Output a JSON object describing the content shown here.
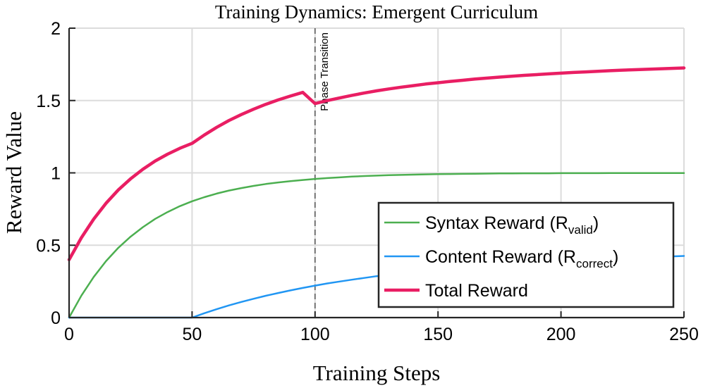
{
  "chart_data": {
    "type": "line",
    "title": "Training Dynamics: Emergent Curriculum",
    "xlabel": "Training Steps",
    "ylabel": "Reward Value",
    "xlim": [
      0,
      250
    ],
    "ylim": [
      0,
      2
    ],
    "xticks": [
      0,
      50,
      100,
      150,
      200,
      250
    ],
    "yticks": [
      0,
      0.5,
      1,
      1.5,
      2
    ],
    "xtick_labels": [
      "0",
      "50",
      "100",
      "150",
      "200",
      "250"
    ],
    "ytick_labels": [
      "0",
      "0.5",
      "1",
      "1.5",
      "2"
    ],
    "grid": true,
    "legend_position": "bottom-right",
    "x": [
      0,
      5,
      10,
      15,
      20,
      25,
      30,
      35,
      40,
      45,
      50,
      55,
      60,
      65,
      70,
      75,
      80,
      85,
      90,
      95,
      100,
      105,
      110,
      115,
      120,
      125,
      130,
      135,
      140,
      145,
      150,
      155,
      160,
      165,
      170,
      175,
      180,
      185,
      190,
      195,
      200,
      205,
      210,
      215,
      220,
      225,
      230,
      235,
      240,
      245,
      250
    ],
    "series": [
      {
        "name": "Syntax Reward (R",
        "name_subscript": "valid",
        "name_suffix": ")",
        "color": "#4caf50",
        "width": 2.5,
        "values": [
          0,
          0.152,
          0.281,
          0.39,
          0.482,
          0.559,
          0.625,
          0.682,
          0.729,
          0.77,
          0.804,
          0.832,
          0.857,
          0.878,
          0.895,
          0.91,
          0.923,
          0.934,
          0.943,
          0.951,
          0.958,
          0.964,
          0.969,
          0.974,
          0.978,
          0.981,
          0.984,
          0.986,
          0.988,
          0.99,
          0.991,
          0.992,
          0.993,
          0.994,
          0.995,
          0.996,
          0.996,
          0.997,
          0.997,
          0.997,
          0.998,
          0.998,
          0.998,
          0.998,
          0.999,
          0.999,
          0.999,
          0.999,
          0.999,
          0.999,
          0.999
        ]
      },
      {
        "name": "Content Reward (R",
        "name_subscript": "correct",
        "name_suffix": ")",
        "color": "#2196f3",
        "width": 2.5,
        "values": [
          0,
          0,
          0,
          0,
          0,
          0,
          0,
          0,
          0,
          0,
          0,
          0.03,
          0.058,
          0.084,
          0.108,
          0.13,
          0.151,
          0.17,
          0.188,
          0.205,
          0.221,
          0.236,
          0.249,
          0.262,
          0.274,
          0.286,
          0.296,
          0.306,
          0.315,
          0.324,
          0.332,
          0.34,
          0.347,
          0.354,
          0.36,
          0.366,
          0.372,
          0.377,
          0.382,
          0.387,
          0.391,
          0.396,
          0.4,
          0.404,
          0.407,
          0.411,
          0.414,
          0.417,
          0.42,
          0.423,
          0.426
        ]
      },
      {
        "name": "Total Reward",
        "color": "#e91e63",
        "width": 4.5,
        "values": [
          0.4,
          0.552,
          0.681,
          0.79,
          0.882,
          0.959,
          1.025,
          1.082,
          1.129,
          1.17,
          1.204,
          1.262,
          1.315,
          1.362,
          1.403,
          1.44,
          1.474,
          1.504,
          1.531,
          1.556,
          1.479,
          1.5,
          1.518,
          1.536,
          1.552,
          1.567,
          1.58,
          1.592,
          1.603,
          1.614,
          1.623,
          1.632,
          1.64,
          1.648,
          1.655,
          1.662,
          1.668,
          1.674,
          1.679,
          1.684,
          1.689,
          1.694,
          1.698,
          1.702,
          1.706,
          1.71,
          1.713,
          1.716,
          1.719,
          1.722,
          1.725
        ]
      }
    ],
    "annotations": [
      {
        "type": "vline",
        "x": 100,
        "text": "Phase Transition",
        "style": "dashed",
        "color": "#555555"
      }
    ]
  }
}
